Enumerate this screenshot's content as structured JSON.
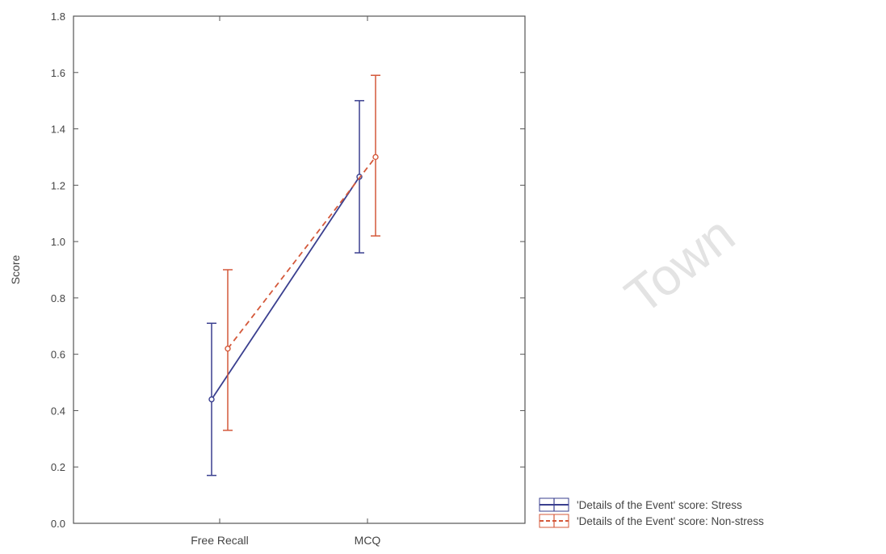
{
  "chart_data": {
    "type": "line",
    "title": "",
    "xlabel": "",
    "ylabel": "Score",
    "categories": [
      "Free Recall",
      "MCQ"
    ],
    "ylim": [
      0.0,
      1.8
    ],
    "yticks": [
      "0.0",
      "0.2",
      "0.4",
      "0.6",
      "0.8",
      "1.0",
      "1.2",
      "1.4",
      "1.6",
      "1.8"
    ],
    "grid": false,
    "legend_position": "bottom-right",
    "series": [
      {
        "name": "'Details of the Event' score: Stress",
        "color": "#3a3f8f",
        "style": "solid",
        "values": [
          0.44,
          1.23
        ],
        "lower": [
          0.17,
          0.96
        ],
        "upper": [
          0.71,
          1.5
        ]
      },
      {
        "name": "'Details of the Event' score: Non-stress",
        "color": "#d4583a",
        "style": "dashed",
        "values": [
          0.62,
          1.3
        ],
        "lower": [
          0.33,
          1.02
        ],
        "upper": [
          0.9,
          1.59
        ]
      }
    ]
  },
  "watermark": "Town"
}
